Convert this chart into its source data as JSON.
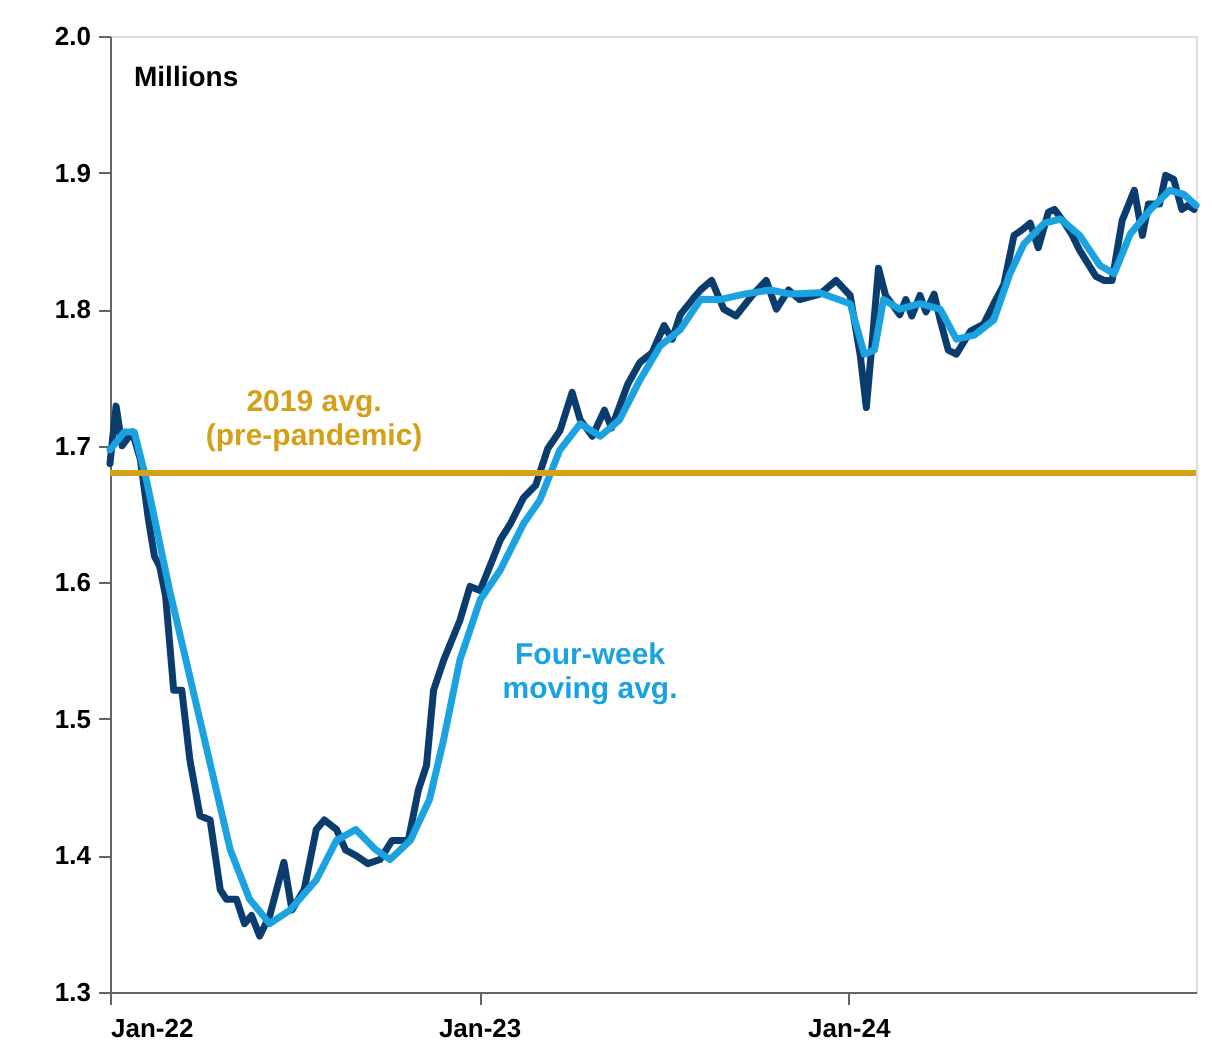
{
  "chart_data": {
    "type": "line",
    "ylabel": "Millions",
    "xlim": [
      "2022-01-01",
      "2024-12-10"
    ],
    "ylim": [
      1.3,
      2.0
    ],
    "xticks": [
      {
        "value": "2022-01-01",
        "label": "Jan-22"
      },
      {
        "value": "2023-01-01",
        "label": "Jan-23"
      },
      {
        "value": "2024-01-01",
        "label": "Jan-24"
      }
    ],
    "yticks": [
      {
        "value": 1.3,
        "label": "1.3"
      },
      {
        "value": 1.4,
        "label": "1.4"
      },
      {
        "value": 1.5,
        "label": "1.5"
      },
      {
        "value": 1.6,
        "label": "1.6"
      },
      {
        "value": 1.7,
        "label": "1.7"
      },
      {
        "value": 1.8,
        "label": "1.8"
      },
      {
        "value": 1.9,
        "label": "1.9"
      },
      {
        "value": 2.0,
        "label": "2.0"
      }
    ],
    "grid": false,
    "legend": false,
    "marker": "none",
    "line_style": "solid",
    "series": [
      {
        "color": "#0b3c6e",
        "x": [
          "2022-01-01",
          "2022-01-07",
          "2022-01-13",
          "2022-01-23",
          "2022-01-31",
          "2022-02-08",
          "2022-02-14",
          "2022-02-19",
          "2022-02-25",
          "2022-03-05",
          "2022-03-13",
          "2022-03-21",
          "2022-03-31",
          "2022-04-10",
          "2022-04-20",
          "2022-04-26",
          "2022-05-06",
          "2022-05-14",
          "2022-05-21",
          "2022-05-29",
          "2022-06-08",
          "2022-06-22",
          "2022-06-30",
          "2022-07-12",
          "2022-07-24",
          "2022-08-01",
          "2022-08-13",
          "2022-08-22",
          "2022-09-01",
          "2022-09-13",
          "2022-09-25",
          "2022-10-07",
          "2022-10-23",
          "2022-11-02",
          "2022-11-10",
          "2022-11-17",
          "2022-11-27",
          "2022-12-13",
          "2022-12-23",
          "2023-01-02",
          "2023-01-14",
          "2023-01-22",
          "2023-02-01",
          "2023-02-14",
          "2023-02-26",
          "2023-03-10",
          "2023-03-22",
          "2023-04-03",
          "2023-04-11",
          "2023-04-23",
          "2023-05-05",
          "2023-05-12",
          "2023-05-28",
          "2023-06-09",
          "2023-06-21",
          "2023-07-03",
          "2023-07-11",
          "2023-07-19",
          "2023-07-31",
          "2023-08-08",
          "2023-08-19",
          "2023-08-31",
          "2023-09-12",
          "2023-09-28",
          "2023-10-12",
          "2023-10-22",
          "2023-11-03",
          "2023-11-14",
          "2023-12-04",
          "2023-12-20",
          "2024-01-03",
          "2024-01-13",
          "2024-01-19",
          "2024-01-25",
          "2024-01-31",
          "2024-02-07",
          "2024-02-13",
          "2024-02-21",
          "2024-02-27",
          "2024-03-04",
          "2024-03-12",
          "2024-03-18",
          "2024-03-26",
          "2024-04-01",
          "2024-04-09",
          "2024-04-17",
          "2024-05-01",
          "2024-05-14",
          "2024-05-24",
          "2024-06-03",
          "2024-06-13",
          "2024-06-21",
          "2024-06-29",
          "2024-07-07",
          "2024-07-17",
          "2024-07-23",
          "2024-08-02",
          "2024-08-09",
          "2024-08-17",
          "2024-09-02",
          "2024-09-10",
          "2024-09-18",
          "2024-09-28",
          "2024-10-10",
          "2024-10-18",
          "2024-10-24",
          "2024-11-04",
          "2024-11-10",
          "2024-11-18",
          "2024-11-26",
          "2024-12-02",
          "2024-12-08"
        ],
        "values": [
          1.687,
          1.729,
          1.7,
          1.71,
          1.69,
          1.646,
          1.619,
          1.612,
          1.59,
          1.521,
          1.521,
          1.47,
          1.429,
          1.426,
          1.375,
          1.368,
          1.368,
          1.35,
          1.356,
          1.341,
          1.356,
          1.395,
          1.36,
          1.375,
          1.419,
          1.426,
          1.419,
          1.404,
          1.4,
          1.394,
          1.397,
          1.411,
          1.411,
          1.448,
          1.466,
          1.521,
          1.543,
          1.572,
          1.597,
          1.594,
          1.616,
          1.631,
          1.643,
          1.662,
          1.671,
          1.698,
          1.711,
          1.739,
          1.719,
          1.707,
          1.726,
          1.713,
          1.745,
          1.761,
          1.768,
          1.788,
          1.778,
          1.796,
          1.807,
          1.814,
          1.821,
          1.8,
          1.795,
          1.81,
          1.821,
          1.8,
          1.814,
          1.807,
          1.811,
          1.821,
          1.81,
          1.766,
          1.728,
          1.778,
          1.83,
          1.81,
          1.804,
          1.796,
          1.807,
          1.795,
          1.81,
          1.798,
          1.811,
          1.792,
          1.77,
          1.767,
          1.784,
          1.789,
          1.804,
          1.818,
          1.854,
          1.858,
          1.863,
          1.845,
          1.871,
          1.873,
          1.863,
          1.855,
          1.843,
          1.824,
          1.821,
          1.821,
          1.865,
          1.887,
          1.854,
          1.877,
          1.877,
          1.898,
          1.895,
          1.873,
          1.876,
          1.873
        ]
      },
      {
        "name": "Four-week moving avg.",
        "color": "#1aa3e0",
        "x": [
          "2022-01-01",
          "2022-01-15",
          "2022-01-25",
          "2022-02-06",
          "2022-03-01",
          "2022-03-31",
          "2022-04-30",
          "2022-05-19",
          "2022-06-08",
          "2022-06-28",
          "2022-07-24",
          "2022-08-13",
          "2022-09-01",
          "2022-09-21",
          "2022-10-05",
          "2022-10-25",
          "2022-11-13",
          "2022-11-27",
          "2022-12-13",
          "2023-01-02",
          "2023-01-22",
          "2023-02-14",
          "2023-03-02",
          "2023-03-22",
          "2023-04-11",
          "2023-05-01",
          "2023-05-20",
          "2023-06-09",
          "2023-06-29",
          "2023-07-19",
          "2023-08-08",
          "2023-08-27",
          "2023-09-20",
          "2023-10-16",
          "2023-11-05",
          "2023-12-04",
          "2024-01-03",
          "2024-01-17",
          "2024-01-27",
          "2024-02-05",
          "2024-02-21",
          "2024-03-12",
          "2024-04-01",
          "2024-04-17",
          "2024-05-05",
          "2024-05-24",
          "2024-06-09",
          "2024-06-23",
          "2024-07-13",
          "2024-07-29",
          "2024-08-17",
          "2024-09-06",
          "2024-09-20",
          "2024-10-06",
          "2024-10-26",
          "2024-11-14",
          "2024-11-28",
          "2024-12-10"
        ],
        "values": [
          1.697,
          1.71,
          1.71,
          1.675,
          1.594,
          1.499,
          1.404,
          1.368,
          1.35,
          1.36,
          1.382,
          1.411,
          1.419,
          1.404,
          1.397,
          1.411,
          1.441,
          1.485,
          1.543,
          1.587,
          1.609,
          1.643,
          1.66,
          1.697,
          1.716,
          1.707,
          1.719,
          1.748,
          1.773,
          1.785,
          1.807,
          1.807,
          1.811,
          1.814,
          1.811,
          1.812,
          1.804,
          1.767,
          1.77,
          1.807,
          1.8,
          1.804,
          1.8,
          1.778,
          1.781,
          1.792,
          1.826,
          1.848,
          1.863,
          1.866,
          1.854,
          1.832,
          1.826,
          1.855,
          1.873,
          1.887,
          1.884,
          1.876
        ]
      }
    ],
    "ref_lines": [
      {
        "axis": "y",
        "value": 1.68,
        "label": "2019 avg.\n(pre-pandemic)",
        "color": "#d4a017",
        "line_style": "solid"
      }
    ]
  }
}
